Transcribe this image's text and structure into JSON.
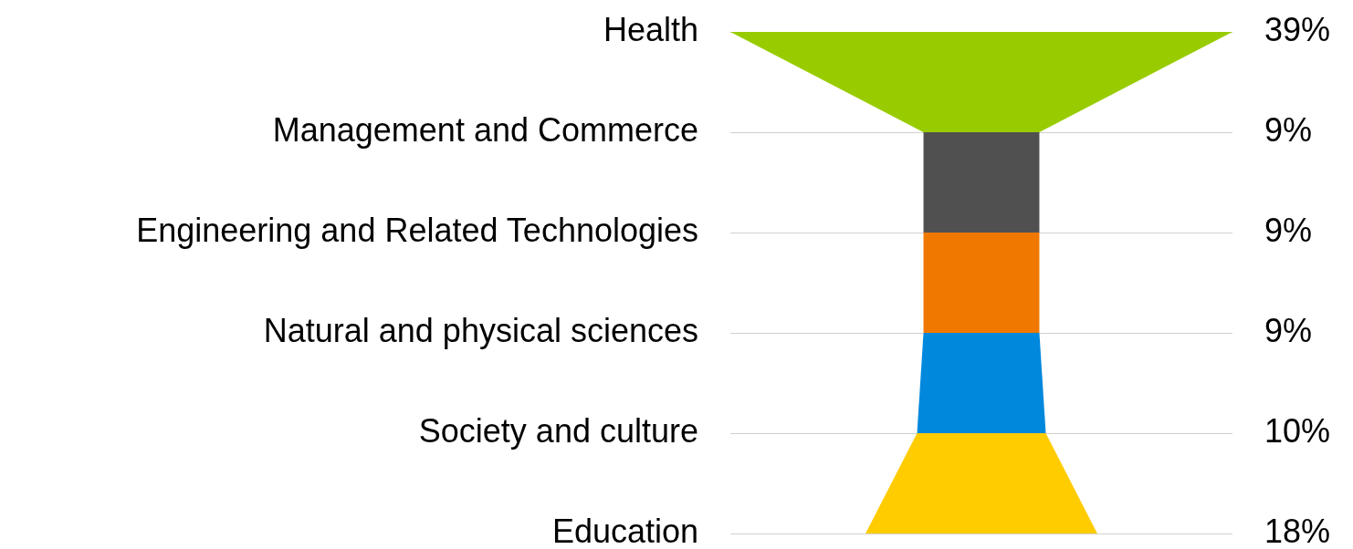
{
  "chart_data": {
    "type": "other",
    "categories": [
      "Health",
      "Management and Commerce",
      "Engineering and Related Technologies",
      "Natural and physical sciences",
      "Society and culture",
      "Education"
    ],
    "values": [
      39,
      9,
      9,
      9,
      10,
      18
    ],
    "value_labels": [
      "39%",
      "9%",
      "9%",
      "9%",
      "10%",
      "18%"
    ],
    "colors": [
      "#99cc00",
      "#505050",
      "#f07800",
      "#0088dd",
      "#ffcc00",
      null
    ]
  }
}
